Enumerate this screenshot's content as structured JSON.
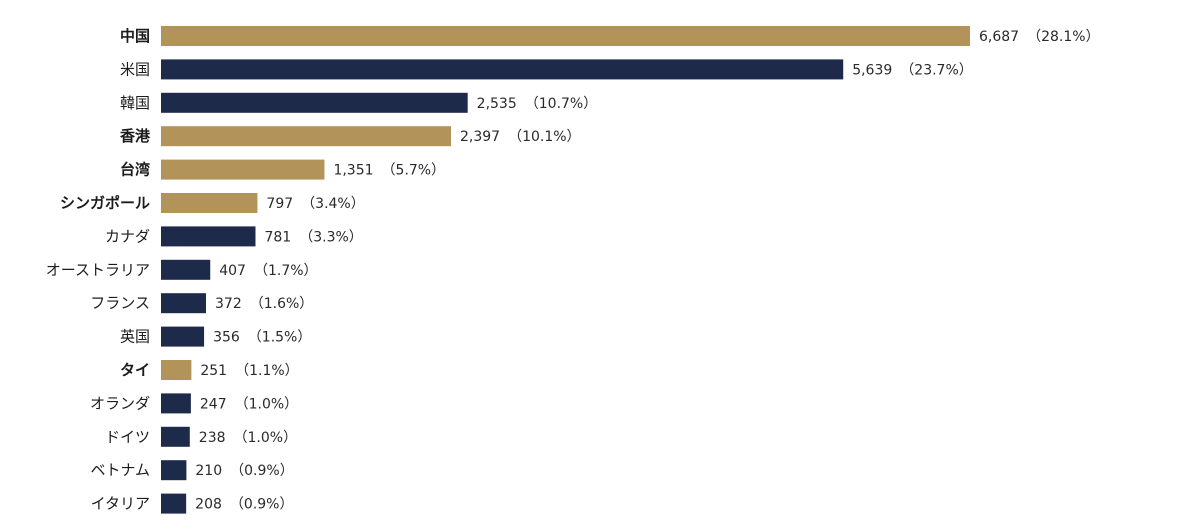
{
  "chart_data": {
    "type": "bar",
    "orientation": "horizontal",
    "title": "",
    "xlabel": "",
    "ylabel": "",
    "xlim": [
      0,
      6687
    ],
    "grid": false,
    "legend": "none",
    "colors": {
      "highlight": "#b29359",
      "default": "#1e2a4a"
    },
    "categories": [
      "中国",
      "米国",
      "韓国",
      "香港",
      "台湾",
      "シンガポール",
      "カナダ",
      "オーストラリア",
      "フランス",
      "英国",
      "タイ",
      "オランダ",
      "ドイツ",
      "ベトナム",
      "イタリア"
    ],
    "values": [
      6687,
      5639,
      2535,
      2397,
      1351,
      797,
      781,
      407,
      372,
      356,
      251,
      247,
      238,
      210,
      208
    ],
    "value_labels": [
      "6,687",
      "5,639",
      "2,535",
      "2,397",
      "1,351",
      "797",
      "781",
      "407",
      "372",
      "356",
      "251",
      "247",
      "238",
      "210",
      "208"
    ],
    "percent_labels": [
      "（28.1%）",
      "（23.7%）",
      "（10.7%）",
      "（10.1%）",
      "（5.7%）",
      "（3.4%）",
      "（3.3%）",
      "（1.7%）",
      "（1.6%）",
      "（1.5%）",
      "（1.1%）",
      "（1.0%）",
      "（1.0%）",
      "（0.9%）",
      "（0.9%）"
    ],
    "percents": [
      28.1,
      23.7,
      10.7,
      10.1,
      5.7,
      3.4,
      3.3,
      1.7,
      1.6,
      1.5,
      1.1,
      1.0,
      1.0,
      0.9,
      0.9
    ],
    "highlighted": [
      true,
      false,
      false,
      true,
      true,
      true,
      false,
      false,
      false,
      false,
      true,
      false,
      false,
      false,
      false
    ]
  }
}
